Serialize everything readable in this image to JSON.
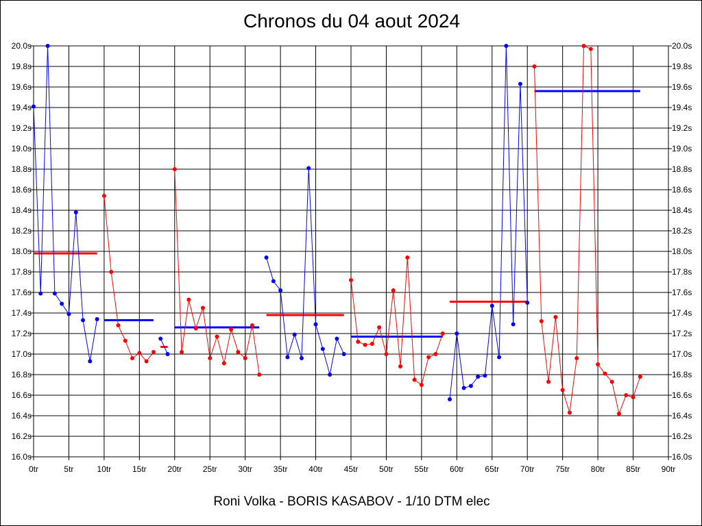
{
  "chart_data": {
    "type": "line",
    "title": "Chronos du 04 aout 2024",
    "caption": "Roni Volka - BORIS KASABOV - 1/10 DTM elec",
    "grid": true,
    "colors": {
      "blue": "#0000ff",
      "red": "#ff0000",
      "grid": "#000000"
    },
    "x_ticks": [
      "0tr",
      "5tr",
      "10tr",
      "15tr",
      "20tr",
      "25tr",
      "30tr",
      "35tr",
      "40tr",
      "45tr",
      "50tr",
      "55tr",
      "60tr",
      "65tr",
      "70tr",
      "75tr",
      "80tr",
      "85tr",
      "90tr"
    ],
    "y_ticks": [
      "20.0s",
      "19.8s",
      "19.6s",
      "19.4s",
      "19.2s",
      "19.0s",
      "18.8s",
      "18.6s",
      "18.4s",
      "18.2s",
      "18.0s",
      "17.8s",
      "17.6s",
      "17.4s",
      "17.2s",
      "17.0s",
      "16.8s",
      "16.6s",
      "16.4s",
      "16.2s",
      "16.0s"
    ],
    "xlim": [
      0,
      90
    ],
    "ylim": [
      16.0,
      20.0
    ],
    "series": [
      {
        "color": "blue",
        "x": [
          0,
          1,
          2,
          3,
          4,
          5,
          6,
          7,
          8,
          9
        ],
        "values": [
          19.41,
          17.59,
          20.0,
          17.59,
          17.49,
          17.39,
          18.38,
          17.33,
          16.93,
          17.34
        ]
      },
      {
        "color": "red",
        "x": [
          10,
          11,
          12,
          13,
          14,
          15,
          16,
          17
        ],
        "values": [
          18.54,
          17.8,
          17.28,
          17.13,
          16.96,
          17.01,
          16.93,
          17.02
        ]
      },
      {
        "color": "blue",
        "x": [
          18,
          19
        ],
        "values": [
          17.15,
          17.0
        ]
      },
      {
        "color": "red",
        "x": [
          20,
          21,
          22,
          23,
          24,
          25,
          26,
          27,
          28,
          29,
          30,
          31,
          32
        ],
        "values": [
          18.8,
          17.02,
          17.53,
          17.25,
          17.45,
          16.96,
          17.17,
          16.91,
          17.24,
          17.02,
          16.96,
          17.28,
          16.8
        ]
      },
      {
        "color": "blue",
        "x": [
          33,
          34,
          35,
          36,
          37,
          38,
          39,
          40,
          41,
          42,
          43,
          44
        ],
        "values": [
          17.94,
          17.71,
          17.62,
          16.97,
          17.19,
          16.96,
          18.81,
          17.29,
          17.05,
          16.8,
          17.15,
          17.0
        ]
      },
      {
        "color": "red",
        "x": [
          45,
          46,
          47,
          48,
          49,
          50,
          51,
          52,
          53,
          54,
          55,
          56,
          57,
          58
        ],
        "values": [
          17.72,
          17.12,
          17.09,
          17.1,
          17.26,
          17.0,
          17.62,
          16.88,
          17.94,
          16.75,
          16.7,
          16.97,
          17.0,
          17.2
        ]
      },
      {
        "color": "blue",
        "x": [
          59,
          60,
          61,
          62,
          63,
          64,
          65,
          66,
          67,
          68,
          69,
          70
        ],
        "values": [
          16.56,
          17.2,
          16.67,
          16.69,
          16.78,
          16.79,
          17.47,
          16.97,
          20.0,
          17.29,
          19.63,
          17.5
        ]
      },
      {
        "color": "red",
        "x": [
          71,
          72,
          73,
          74,
          75,
          76,
          77,
          78,
          79,
          80,
          81,
          82,
          83,
          84,
          85,
          86
        ],
        "values": [
          19.8,
          17.32,
          16.73,
          17.36,
          16.65,
          16.43,
          16.96,
          20.0,
          19.97,
          16.9,
          16.81,
          16.73,
          16.42,
          16.6,
          16.58,
          16.78
        ]
      }
    ],
    "averages": [
      {
        "color": "red",
        "x": [
          0,
          9
        ],
        "value": 17.98
      },
      {
        "color": "blue",
        "x": [
          10,
          17
        ],
        "value": 17.33
      },
      {
        "color": "red",
        "x": [
          18,
          19
        ],
        "value": 17.07
      },
      {
        "color": "blue",
        "x": [
          20,
          32
        ],
        "value": 17.26
      },
      {
        "color": "red",
        "x": [
          33,
          44
        ],
        "value": 17.38
      },
      {
        "color": "blue",
        "x": [
          45,
          58
        ],
        "value": 17.17
      },
      {
        "color": "red",
        "x": [
          59,
          70
        ],
        "value": 17.51
      },
      {
        "color": "blue",
        "x": [
          71,
          86
        ],
        "value": 19.56
      }
    ]
  }
}
